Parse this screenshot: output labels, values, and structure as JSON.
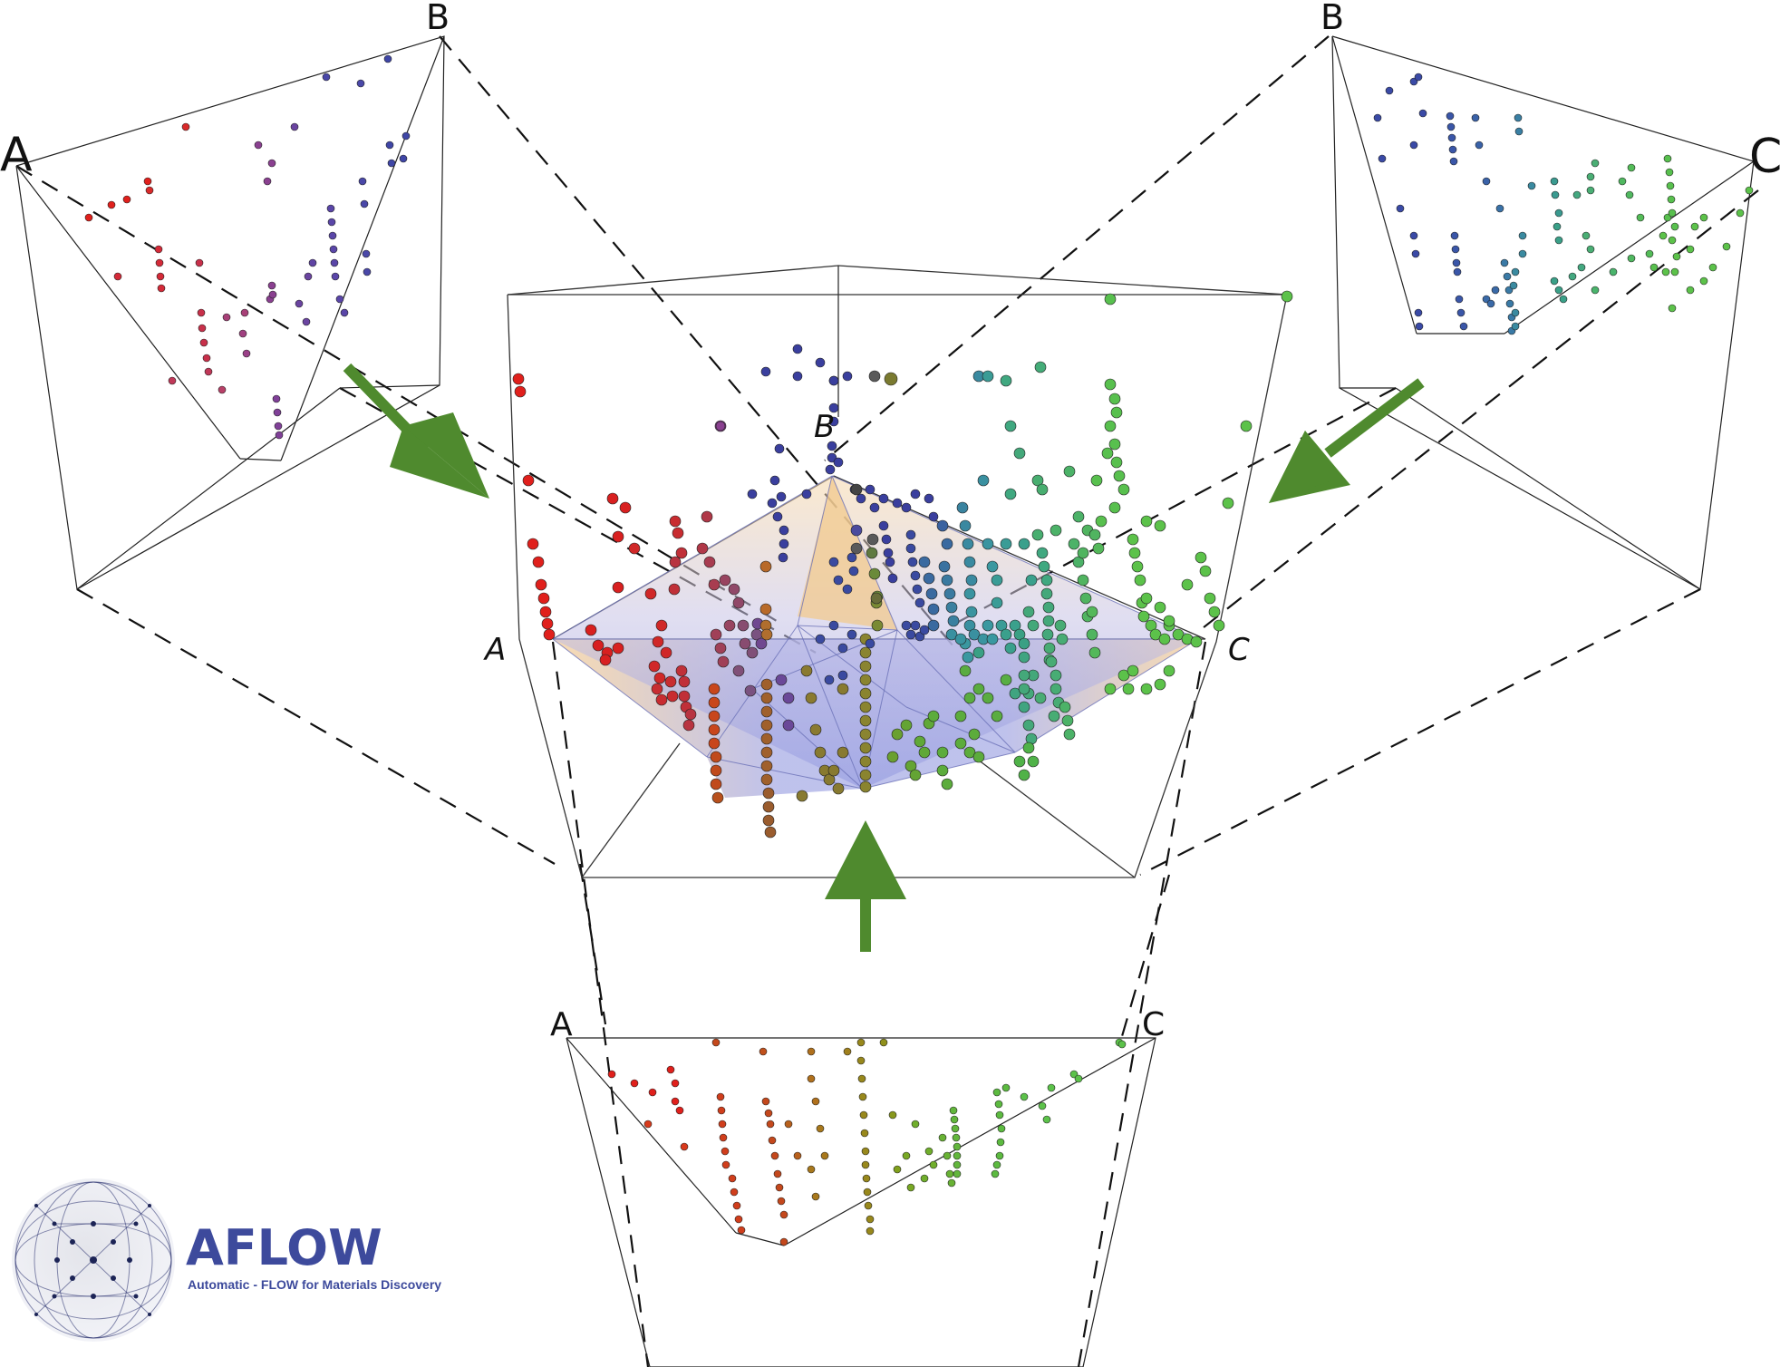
{
  "labels": {
    "left_a": "A",
    "left_b": "B",
    "right_b": "B",
    "right_c": "C",
    "center_a": "A",
    "center_b": "B",
    "center_c": "C",
    "bottom_a": "A",
    "bottom_c": "C"
  },
  "colors": {
    "vertex_a": "#e0201c",
    "vertex_b": "#3a3f9e",
    "vertex_c": "#5cc24a",
    "arrow": "#4f8a2e",
    "hull_fill": "#8f96df",
    "hull_edge": "#f2c88a",
    "logo_blue": "#3d4a9c"
  },
  "icons": {
    "logo": "aflow-network-sphere-icon"
  },
  "logo": {
    "word": "AFLOW",
    "tagline": "Automatic - FLOW for Materials Discovery"
  }
}
